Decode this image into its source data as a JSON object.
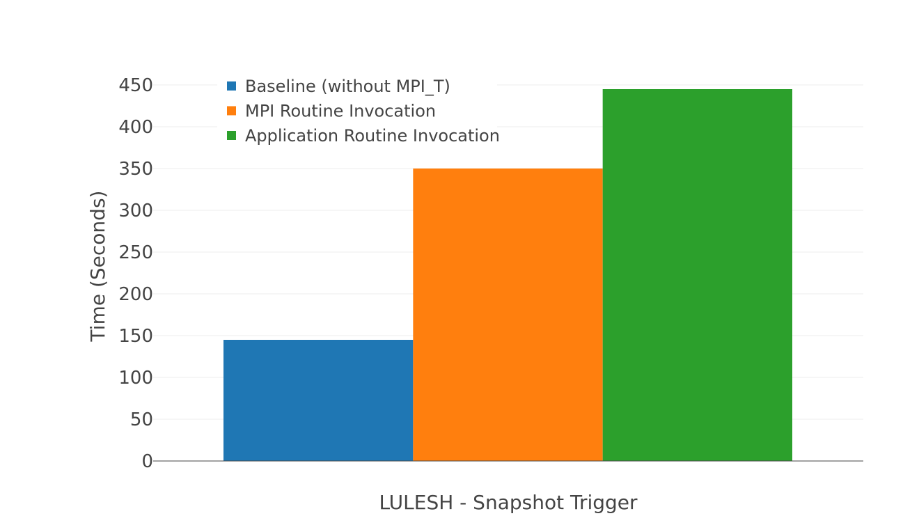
{
  "chart_data": {
    "type": "bar",
    "title": "",
    "xlabel": "LULESH - Snapshot Trigger",
    "ylabel": "Time (Seconds)",
    "categories": [
      ""
    ],
    "ylim": [
      0,
      450
    ],
    "yticks": [
      0,
      50,
      100,
      150,
      200,
      250,
      300,
      350,
      400,
      450
    ],
    "grid": true,
    "legend_position": "top-left",
    "series": [
      {
        "name": "Baseline (without MPI_T)",
        "values": [
          145
        ],
        "color": "#1f77b4"
      },
      {
        "name": "MPI Routine Invocation",
        "values": [
          350
        ],
        "color": "#ff7f0e"
      },
      {
        "name": "Application Routine Invocation",
        "values": [
          445
        ],
        "color": "#2ca02c"
      }
    ]
  }
}
